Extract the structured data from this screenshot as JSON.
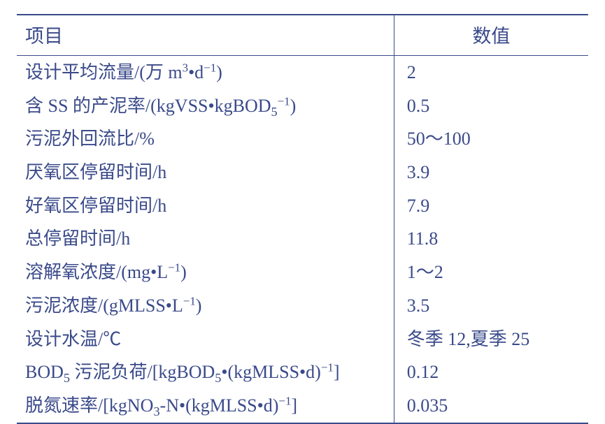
{
  "table": {
    "type": "table",
    "columns": [
      "项目",
      "数值"
    ],
    "col_widths": [
      "66%",
      "34%"
    ],
    "border_color": "#3a4a8a",
    "text_color": "#3a4a8a",
    "header_fontsize": 27,
    "cell_fontsize": 26,
    "background_color": "#ffffff",
    "rows": [
      {
        "key_html": "设计平均流量/(万 m<span class=\"sup\">3</span>•d<span class=\"sup\">−1</span>)",
        "value": "2"
      },
      {
        "key_html": "含 SS 的产泥率/(kgVSS•kgBOD<span class=\"sub\">5</span><span class=\"sup\">−1</span>)",
        "value": "0.5"
      },
      {
        "key_html": "污泥外回流比/%",
        "value": "50～100"
      },
      {
        "key_html": "厌氧区停留时间/h",
        "value": "3.9"
      },
      {
        "key_html": "好氧区停留时间/h",
        "value": "7.9"
      },
      {
        "key_html": "总停留时间/h",
        "value": "11.8"
      },
      {
        "key_html": "溶解氧浓度/(mg•L<span class=\"sup\">−1</span>)",
        "value": "1～2"
      },
      {
        "key_html": "污泥浓度/(gMLSS•L<span class=\"sup\">−1</span>)",
        "value": "3.5"
      },
      {
        "key_html": "设计水温/℃",
        "value": "冬季 12,夏季 25"
      },
      {
        "key_html": "BOD<span class=\"sub\">5</span> 污泥负荷/[kgBOD<span class=\"sub\">5</span>•(kgMLSS•d)<span class=\"sup\">−1</span>]",
        "value": "0.12"
      },
      {
        "key_html": "脱氮速率/[kgNO<span class=\"sub\">3</span>-N•(kgMLSS•d)<span class=\"sup\">−1</span>]",
        "value": "0.035"
      }
    ]
  }
}
